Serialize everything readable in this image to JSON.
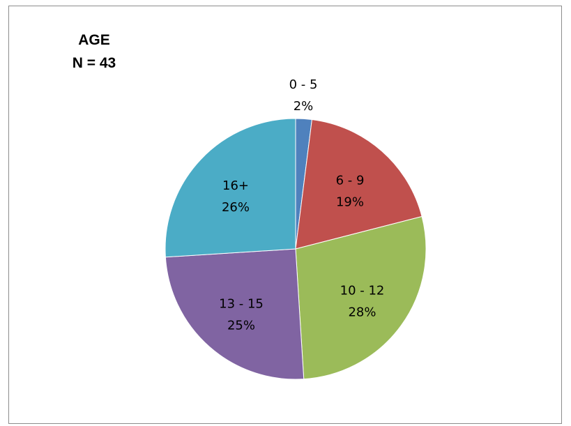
{
  "chart_data": {
    "type": "pie",
    "title": "AGE",
    "subtitle": "N = 43",
    "categories": [
      "0 - 5",
      "6 - 9",
      "10 - 12",
      "13 - 15",
      "16+"
    ],
    "values": [
      2,
      19,
      28,
      25,
      26
    ],
    "value_labels": [
      "2%",
      "19%",
      "28%",
      "25%",
      "26%"
    ],
    "colors": [
      "#4f81bd",
      "#c0504d",
      "#9bbb59",
      "#8064a2",
      "#4bacc6"
    ],
    "start_angle": "12 o'clock",
    "direction": "clockwise",
    "legend": "none",
    "label_position": "0 - 5 outside, others inside"
  }
}
